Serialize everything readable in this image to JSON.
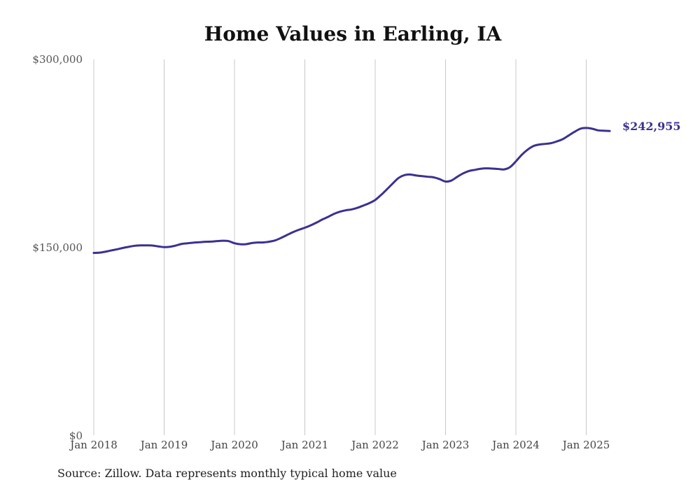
{
  "chart_data": {
    "type": "line",
    "title": "Home Values in Earling, IA",
    "source": "Source: Zillow. Data represents monthly typical home value",
    "end_label": "$242,955",
    "line_color": "#3b3190",
    "grid": "vertical",
    "ylim": [
      0,
      300000
    ],
    "y_ticks": [
      {
        "value": 0,
        "label": "$0"
      },
      {
        "value": 150000,
        "label": "$150,000"
      },
      {
        "value": 300000,
        "label": "$300,000"
      }
    ],
    "x_ticks": [
      {
        "value": "2018-01",
        "label": "Jan 2018"
      },
      {
        "value": "2019-01",
        "label": "Jan 2019"
      },
      {
        "value": "2020-01",
        "label": "Jan 2020"
      },
      {
        "value": "2021-01",
        "label": "Jan 2021"
      },
      {
        "value": "2022-01",
        "label": "Jan 2022"
      },
      {
        "value": "2023-01",
        "label": "Jan 2023"
      },
      {
        "value": "2024-01",
        "label": "Jan 2024"
      },
      {
        "value": "2025-01",
        "label": "Jan 2025"
      }
    ],
    "series": [
      {
        "x": [
          "2018-01",
          "2018-02",
          "2018-03",
          "2018-04",
          "2018-05",
          "2018-06",
          "2018-07",
          "2018-08",
          "2018-09",
          "2018-10",
          "2018-11",
          "2018-12",
          "2019-01",
          "2019-02",
          "2019-03",
          "2019-04",
          "2019-05",
          "2019-06",
          "2019-07",
          "2019-08",
          "2019-09",
          "2019-10",
          "2019-11",
          "2019-12",
          "2020-01",
          "2020-02",
          "2020-03",
          "2020-04",
          "2020-05",
          "2020-06",
          "2020-07",
          "2020-08",
          "2020-09",
          "2020-10",
          "2020-11",
          "2020-12",
          "2021-01",
          "2021-02",
          "2021-03",
          "2021-04",
          "2021-05",
          "2021-06",
          "2021-07",
          "2021-08",
          "2021-09",
          "2021-10",
          "2021-11",
          "2021-12",
          "2022-01",
          "2022-02",
          "2022-03",
          "2022-04",
          "2022-05",
          "2022-06",
          "2022-07",
          "2022-08",
          "2022-09",
          "2022-10",
          "2022-11",
          "2022-12",
          "2023-01",
          "2023-02",
          "2023-03",
          "2023-04",
          "2023-05",
          "2023-06",
          "2023-07",
          "2023-08",
          "2023-09",
          "2023-10",
          "2023-11",
          "2023-12",
          "2024-01",
          "2024-02",
          "2024-03",
          "2024-04",
          "2024-05",
          "2024-06",
          "2024-07",
          "2024-08",
          "2024-09",
          "2024-10",
          "2024-11",
          "2024-12",
          "2025-01",
          "2025-02",
          "2025-03",
          "2025-04",
          "2025-05"
        ],
        "values": [
          145800,
          146000,
          146800,
          147800,
          148700,
          149800,
          150700,
          151500,
          151800,
          151800,
          151700,
          151000,
          150400,
          150700,
          151700,
          153000,
          153500,
          154000,
          154300,
          154700,
          154800,
          155200,
          155500,
          155200,
          153500,
          152700,
          152800,
          153700,
          154100,
          154200,
          154800,
          155900,
          157900,
          160200,
          162400,
          164300,
          165900,
          167800,
          170000,
          172500,
          174600,
          177000,
          178700,
          179800,
          180500,
          181800,
          183600,
          185500,
          188000,
          192000,
          196500,
          201200,
          205600,
          207800,
          208300,
          207500,
          207000,
          206500,
          206000,
          204600,
          202700,
          203500,
          206500,
          209200,
          211100,
          212000,
          212900,
          213200,
          213000,
          212700,
          212400,
          214200,
          218800,
          224000,
          228100,
          231000,
          232200,
          232700,
          233300,
          234700,
          236500,
          239400,
          242300,
          244800,
          245400,
          244800,
          243500,
          243200,
          242955
        ]
      }
    ]
  }
}
